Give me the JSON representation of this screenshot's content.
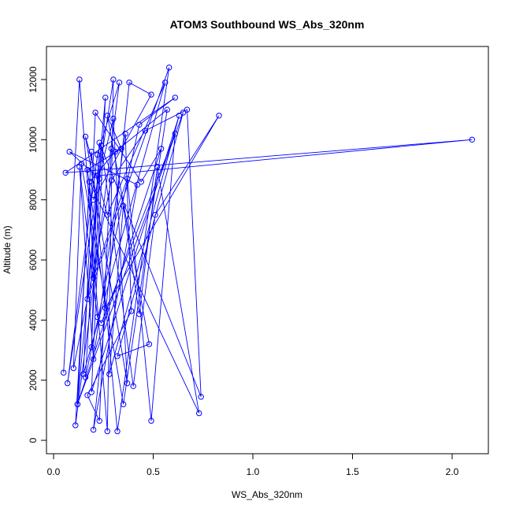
{
  "chart_data": {
    "type": "line",
    "title": "ATOM3 Southbound WS_Abs_320nm",
    "xlabel": "WS_Abs_320nm",
    "ylabel": "Altitude (m)",
    "xlim": [
      0,
      2.1
    ],
    "ylim": [
      200,
      12400
    ],
    "x_ticks": [
      0.0,
      0.5,
      1.0,
      1.5,
      2.0
    ],
    "x_tick_labels": [
      "0.0",
      "0.5",
      "1.0",
      "1.5",
      "2.0"
    ],
    "y_ticks": [
      0,
      2000,
      4000,
      6000,
      8000,
      10000,
      12000
    ],
    "y_tick_labels": [
      "0",
      "2000",
      "4000",
      "6000",
      "8000",
      "10000",
      "12000"
    ],
    "grid": false,
    "legend": "none",
    "series_color": "#0000ff",
    "x": [
      0.05,
      0.13,
      0.27,
      0.3,
      0.07,
      0.22,
      0.33,
      0.11,
      0.19,
      0.32,
      0.58,
      0.17,
      0.23,
      0.08,
      0.42,
      0.2,
      0.38,
      0.49,
      0.2,
      0.3,
      0.37,
      0.16,
      0.27,
      0.56,
      0.15,
      0.21,
      0.44,
      0.54,
      0.12,
      0.18,
      0.31,
      0.57,
      0.35,
      0.14,
      0.1,
      0.29,
      0.46,
      0.67,
      0.74,
      0.23,
      0.16,
      0.43,
      0.61,
      0.06,
      2.1,
      0.22,
      0.19,
      0.24,
      0.4,
      0.51,
      0.83,
      0.26,
      0.17,
      0.34,
      0.27,
      0.48,
      0.32,
      0.65,
      0.12,
      0.26,
      0.19,
      0.63,
      0.28,
      0.35,
      0.43,
      0.52,
      0.73,
      0.18,
      0.2,
      0.37,
      0.49,
      0.61,
      0.24,
      0.22,
      0.13,
      0.2,
      0.36,
      0.39,
      0.17,
      0.23,
      0.29
    ],
    "y": [
      2250,
      12000,
      300,
      12000,
      1900,
      9500,
      11900,
      500,
      9600,
      300,
      12400,
      4700,
      8700,
      9600,
      8500,
      350,
      11900,
      11500,
      8000,
      10700,
      1900,
      10100,
      7500,
      11900,
      2200,
      10900,
      8600,
      9700,
      1200,
      8600,
      9600,
      11000,
      1200,
      9200,
      2400,
      8650,
      10300,
      11000,
      1450,
      9900,
      2100,
      10500,
      11400,
      8900,
      10000,
      8800,
      3100,
      9800,
      1800,
      7500,
      10800,
      4400,
      9000,
      9700,
      10800,
      3200,
      2800,
      10900,
      1200,
      11400,
      1600,
      10800,
      2200,
      7800,
      4200,
      9100,
      900,
      8600,
      5400,
      8700,
      650,
      10200,
      3900,
      4100,
      9100,
      2700,
      10200,
      4300,
      1500,
      650,
      9700
    ]
  }
}
